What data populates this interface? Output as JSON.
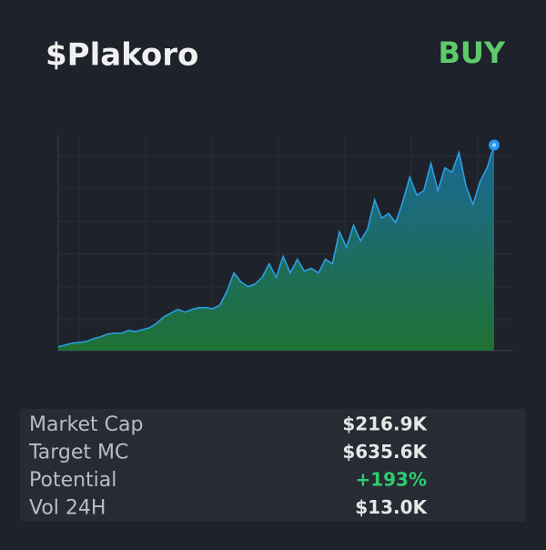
{
  "header": {
    "title": "$Plakoro",
    "action": "BUY"
  },
  "chart_data": {
    "type": "line",
    "color": "#2a9fe0",
    "area_top_color": "#1b6fa3",
    "area_bottom_color": "#1f7a35",
    "grid": true,
    "ylim": [
      0,
      105
    ],
    "values": [
      1.8,
      2.7,
      3.6,
      4,
      4.4,
      5.8,
      6.7,
      8,
      8.4,
      8.4,
      9.8,
      9.3,
      10.2,
      11.1,
      13.3,
      16.4,
      18.2,
      20,
      18.7,
      20,
      20.9,
      20.9,
      20.4,
      22.2,
      28.9,
      37.8,
      33.3,
      31.1,
      32.4,
      35.6,
      42.2,
      35.6,
      45.8,
      37.8,
      44.4,
      38.7,
      40,
      37.8,
      44.4,
      42.2,
      57.8,
      50.2,
      60.9,
      53.3,
      59.1,
      73.3,
      64.4,
      66.7,
      62.2,
      72.4,
      84.4,
      75.6,
      77.8,
      91.1,
      77.8,
      88.9,
      86.7,
      96.4,
      80,
      71.1,
      82.2,
      88.9,
      100
    ]
  },
  "stats": {
    "rows": [
      [
        "Market Cap",
        "$216.9K"
      ],
      [
        "Target MC",
        "$635.6K"
      ],
      [
        "Potential",
        "+193%"
      ],
      [
        "Vol 24H",
        "$13.0K"
      ]
    ]
  }
}
